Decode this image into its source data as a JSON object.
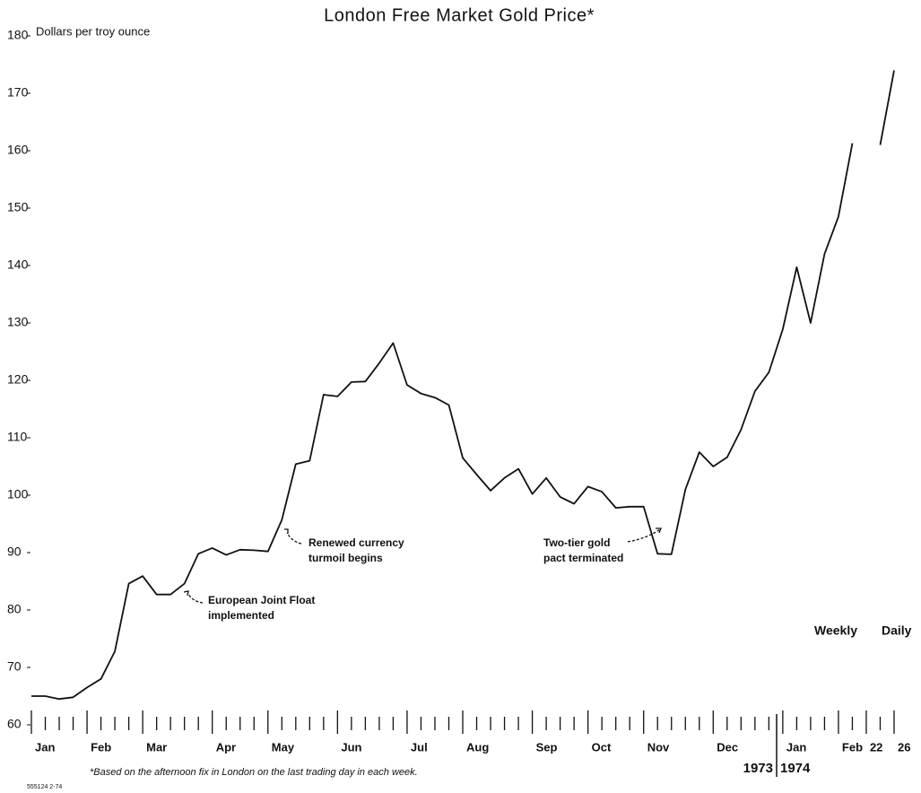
{
  "chart_data": {
    "type": "line",
    "title": "London Free Market Gold Price*",
    "y_axis_label": "Dollars per troy ounce",
    "categories": [
      "Jan",
      null,
      null,
      null,
      "Feb",
      null,
      null,
      null,
      "Mar",
      null,
      null,
      null,
      null,
      "Apr",
      null,
      null,
      null,
      "May",
      null,
      null,
      null,
      null,
      "Jun",
      null,
      null,
      null,
      null,
      "Jul",
      null,
      null,
      null,
      "Aug",
      null,
      null,
      null,
      null,
      "Sep",
      null,
      null,
      null,
      "Oct",
      null,
      null,
      null,
      "Nov",
      null,
      null,
      null,
      null,
      "Dec",
      null,
      null,
      null,
      null,
      "Jan",
      null,
      null,
      null,
      "Feb",
      null,
      "22",
      null,
      "26"
    ],
    "series": [
      {
        "name": "Gold price",
        "color": "#111111",
        "values": [
          65,
          65,
          64.5,
          64.8,
          66.5,
          68,
          72.8,
          84.6,
          85.9,
          82.7,
          82.7,
          84.6,
          89.8,
          90.8,
          89.6,
          90.5,
          90.4,
          90.2,
          95.7,
          105.4,
          106,
          117.5,
          117.2,
          119.7,
          119.8,
          123,
          126.5,
          119.2,
          117.7,
          117,
          115.7,
          106.5,
          103.6,
          100.8,
          103,
          104.6,
          100.2,
          103,
          99.7,
          98.5,
          101.5,
          100.6,
          97.8,
          98,
          98,
          89.8,
          89.7,
          101,
          107.5,
          105,
          106.6,
          111.4,
          118.1,
          121.4,
          128.9,
          139.7,
          130,
          142,
          148.5,
          161.3,
          null,
          161,
          174
        ]
      }
    ],
    "ylim": [
      60,
      180
    ],
    "yticks": [
      60,
      70,
      80,
      90,
      100,
      110,
      120,
      130,
      140,
      150,
      160,
      170,
      180
    ],
    "grid": false,
    "annotations": [
      {
        "lines": [
          "European Joint Float",
          "implemented"
        ]
      },
      {
        "lines": [
          "Renewed currency",
          "turmoil begins"
        ]
      },
      {
        "lines": [
          "Two-tier gold",
          "pact terminated"
        ]
      }
    ],
    "period_labels": [
      "Weekly",
      "Daily"
    ],
    "year_labels": [
      "1973",
      "1974"
    ],
    "footnote": "*Based on the afternoon fix in London on the last trading day in each week.",
    "source_code": "555124 2-74"
  }
}
